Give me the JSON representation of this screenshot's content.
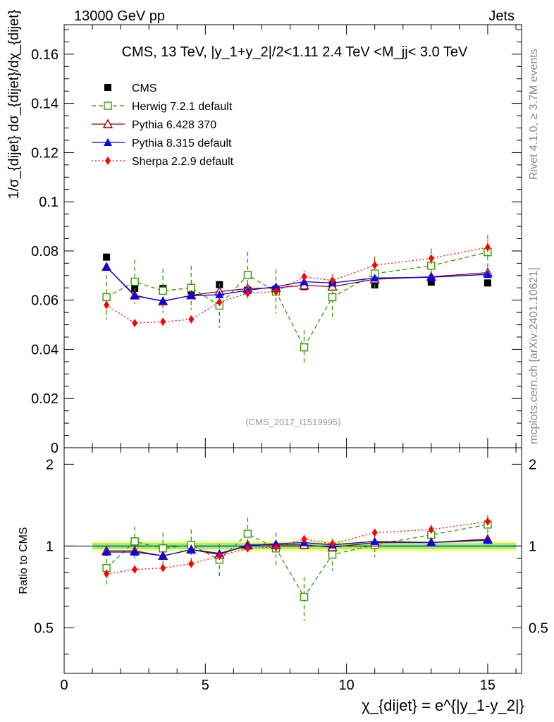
{
  "header": {
    "left": "13000 GeV pp",
    "right": "Jets"
  },
  "side": {
    "rivet": "Rivet 4.1.0, ≥ 3.7M events",
    "mcplots": "mcplots.cern.ch [arXiv:2401.10621]"
  },
  "watermark": "(CMS_2017_I1519995)",
  "chart_data": [
    {
      "type": "scatter",
      "panel": "main",
      "title": "CMS, 13 TeV, |y_1+y_2|/2<1.11 2.4 TeV <M_jj< 3.0 TeV",
      "ylabel": "1/σ_{dijet} dσ_{dijet}/dχ_{dijet}",
      "xlim": [
        0,
        16.2
      ],
      "ylim": [
        0,
        0.172
      ],
      "yticks": [
        {
          "v": 0,
          "label": "0"
        },
        {
          "v": 0.02,
          "label": "0.02"
        },
        {
          "v": 0.04,
          "label": "0.04"
        },
        {
          "v": 0.06,
          "label": "0.06"
        },
        {
          "v": 0.08,
          "label": "0.08"
        },
        {
          "v": 0.1,
          "label": "0.1"
        },
        {
          "v": 0.12,
          "label": "0.12"
        },
        {
          "v": 0.14,
          "label": "0.14"
        },
        {
          "v": 0.16,
          "label": "0.16"
        }
      ],
      "x": [
        1.5,
        2.5,
        3.5,
        4.5,
        5.5,
        6.5,
        7.5,
        8.5,
        9.5,
        11,
        13,
        15
      ],
      "series": [
        {
          "name": "CMS",
          "color": "#000000",
          "marker": "square-filled",
          "line": "none",
          "values": [
            0.0775,
            0.0648,
            0.0648,
            0.0638,
            0.0663,
            0.0641,
            0.0645,
            0.0655,
            0.0663,
            0.0662,
            0.0673,
            0.067
          ]
        },
        {
          "name": "Herwig 7.2.1 default",
          "color": "#339900",
          "marker": "square-open",
          "line": "dashed",
          "values": [
            0.0612,
            0.0675,
            0.0638,
            0.065,
            0.0578,
            0.0702,
            0.0635,
            0.0408,
            0.0612,
            0.0708,
            0.074,
            0.0795
          ],
          "errors": [
            0.009,
            0.009,
            0.009,
            0.009,
            0.009,
            0.0095,
            0.009,
            0.007,
            0.008,
            0.007,
            0.007,
            0.007
          ]
        },
        {
          "name": "Pythia 6.428 370",
          "color": "#990000",
          "marker": "triangle-open",
          "line": "solid",
          "values": [
            0.0735,
            0.062,
            0.0595,
            0.062,
            0.0635,
            0.0647,
            0.065,
            0.066,
            0.0655,
            0.0685,
            0.0695,
            0.0712
          ]
        },
        {
          "name": "Pythia 8.315 default",
          "color": "#0000ff",
          "marker": "triangle-filled",
          "line": "solid",
          "values": [
            0.0735,
            0.0617,
            0.0597,
            0.0618,
            0.0622,
            0.064,
            0.0655,
            0.0675,
            0.067,
            0.069,
            0.0693,
            0.0705
          ]
        },
        {
          "name": "Sherpa 2.2.9 default",
          "color": "#ff0000",
          "marker": "diamond-filled",
          "line": "dotted",
          "values": [
            0.058,
            0.0507,
            0.0512,
            0.0522,
            0.0592,
            0.0628,
            0.0635,
            0.0695,
            0.068,
            0.0742,
            0.077,
            0.0815
          ],
          "errors": [
            0.002,
            0.0015,
            0.0015,
            0.0015,
            0.002,
            0.002,
            0.002,
            0.0025,
            0.0025,
            0.002,
            0.0025,
            0.003
          ]
        }
      ],
      "legend": "top-left"
    },
    {
      "type": "scatter",
      "panel": "ratio",
      "ylabel": "Ratio to CMS",
      "xlabel": "χ_{dijet} = e^{|y_1-y_2|}",
      "xlim": [
        0,
        16.2
      ],
      "ylim": [
        0.34,
        2.3
      ],
      "yticks": [
        {
          "v": 0.5,
          "label": "0.5"
        },
        {
          "v": 1,
          "label": "1"
        },
        {
          "v": 2,
          "label": "2"
        }
      ],
      "xticks": [
        {
          "v": 0,
          "label": "0"
        },
        {
          "v": 5,
          "label": "5"
        },
        {
          "v": 10,
          "label": "10"
        },
        {
          "v": 15,
          "label": "15"
        }
      ],
      "band": {
        "x_from": 1,
        "x_to": 16,
        "inner": [
          0.975,
          1.025
        ],
        "outer": [
          0.955,
          1.045
        ]
      },
      "x": [
        1.5,
        2.5,
        3.5,
        4.5,
        5.5,
        6.5,
        7.5,
        8.5,
        9.5,
        11,
        13,
        15
      ],
      "series": [
        {
          "name": "Herwig 7.2.1 default",
          "color": "#339900",
          "marker": "square-open",
          "line": "dashed",
          "values": [
            0.83,
            1.04,
            0.98,
            1.01,
            0.89,
            1.11,
            0.98,
            0.65,
            0.93,
            1.01,
            1.1,
            1.2
          ],
          "errors": [
            0.12,
            0.14,
            0.14,
            0.14,
            0.13,
            0.16,
            0.14,
            0.12,
            0.12,
            0.1,
            0.1,
            0.1
          ]
        },
        {
          "name": "Pythia 6.428 370",
          "color": "#990000",
          "marker": "triangle-open",
          "line": "solid",
          "values": [
            0.96,
            0.96,
            0.92,
            0.97,
            0.93,
            1.01,
            1.01,
            1.01,
            0.99,
            1.03,
            1.03,
            1.06
          ]
        },
        {
          "name": "Pythia 8.315 default",
          "color": "#0000ff",
          "marker": "triangle-filled",
          "line": "solid",
          "values": [
            0.95,
            0.95,
            0.92,
            0.97,
            0.94,
            1.0,
            1.02,
            1.03,
            1.01,
            1.04,
            1.03,
            1.05
          ]
        },
        {
          "name": "Sherpa 2.2.9 default",
          "color": "#ff0000",
          "marker": "diamond-filled",
          "line": "dotted",
          "values": [
            0.79,
            0.82,
            0.83,
            0.86,
            0.92,
            0.98,
            0.99,
            1.06,
            1.02,
            1.12,
            1.15,
            1.23
          ],
          "errors": [
            0.03,
            0.025,
            0.025,
            0.025,
            0.03,
            0.03,
            0.03,
            0.04,
            0.04,
            0.03,
            0.035,
            0.04
          ]
        }
      ]
    }
  ]
}
